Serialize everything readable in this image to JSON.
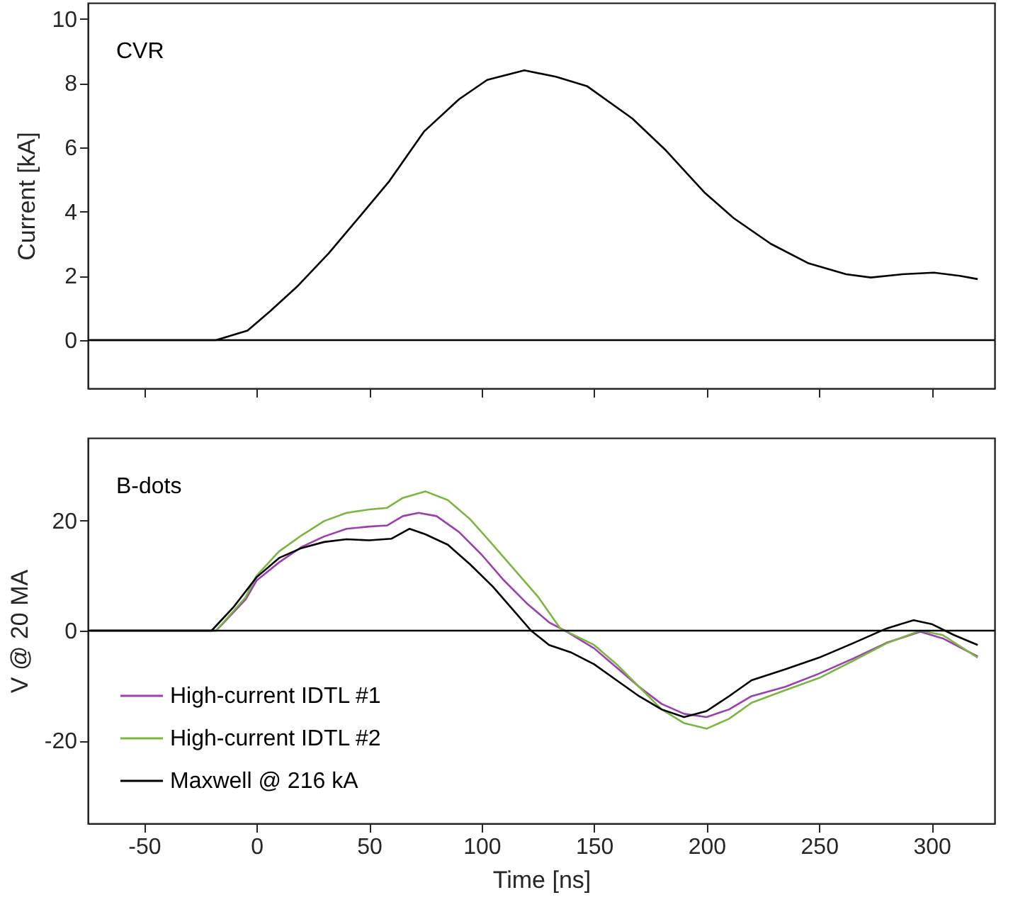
{
  "chart_data": [
    {
      "type": "line",
      "ylabel": "Current [kA]",
      "annotations": [
        "CVR"
      ],
      "xlim": [
        -75,
        328
      ],
      "xticks": [
        -50,
        0,
        50,
        100,
        150,
        200,
        250,
        300
      ],
      "ylim": [
        -1.5,
        10.5
      ],
      "yticks": [
        0,
        2,
        4,
        6,
        8,
        10
      ],
      "tick_labels": "y",
      "ref_lines": [
        {
          "axis": "y",
          "value": 0,
          "color": "#000000"
        }
      ],
      "series": [
        {
          "color": "#000000",
          "x": [
            -74,
            -18,
            -4,
            6,
            18.5,
            32,
            46.5,
            59,
            74.5,
            90,
            102.5,
            119,
            133,
            147,
            167,
            182,
            199,
            212,
            228.5,
            245,
            262,
            273,
            287,
            301,
            312.5,
            320.5
          ],
          "values": [
            0,
            0,
            0.3,
            0.9,
            1.7,
            2.7,
            3.9,
            4.95,
            6.5,
            7.5,
            8.1,
            8.4,
            8.2,
            7.9,
            6.9,
            5.9,
            4.6,
            3.8,
            3.0,
            2.4,
            2.05,
            1.95,
            2.05,
            2.1,
            2.0,
            1.9
          ]
        }
      ]
    },
    {
      "type": "line",
      "xlabel": "Time [ns]",
      "ylabel": "V @ 20 MA",
      "annotations": [
        "B-dots"
      ],
      "xlim": [
        -75,
        328
      ],
      "xticks": [
        -50,
        0,
        50,
        100,
        150,
        200,
        250,
        300
      ],
      "ylim": [
        -35,
        35
      ],
      "yticks": [
        -20,
        0,
        20
      ],
      "legend": "bottom left",
      "ref_lines": [
        {
          "axis": "y",
          "value": 0,
          "color": "#000000"
        }
      ],
      "series": [
        {
          "name": "High-current IDTL #1",
          "color": "#9b3fae",
          "x": [
            -74,
            -18,
            -5,
            0,
            10,
            20,
            30,
            40,
            50,
            58,
            65,
            72,
            80,
            90,
            100,
            110,
            120,
            130,
            137,
            150,
            160,
            170,
            180,
            190,
            200,
            210,
            220,
            235,
            250,
            265,
            280,
            295,
            305,
            320.5
          ],
          "values": [
            0,
            0,
            5.6,
            9.1,
            12.4,
            15.2,
            17.1,
            18.5,
            18.9,
            19.1,
            20.8,
            21.4,
            20.8,
            17.9,
            13.8,
            9.1,
            5,
            1.5,
            0,
            -3.2,
            -6.7,
            -10.2,
            -13.3,
            -15.1,
            -15.7,
            -14.3,
            -11.9,
            -10.2,
            -7.8,
            -5.1,
            -2.2,
            -0.2,
            -1.4,
            -4.7
          ]
        },
        {
          "name": "High-current IDTL #2",
          "color": "#7ab640",
          "x": [
            -74,
            -18,
            -5,
            0,
            10,
            20,
            30,
            40,
            50,
            58,
            65,
            75,
            85,
            95,
            105,
            115,
            125,
            135,
            150,
            160,
            170,
            180,
            190,
            200,
            210,
            220,
            235,
            250,
            265,
            280,
            295,
            305,
            320.5
          ],
          "values": [
            0,
            0,
            6,
            10,
            14.4,
            17.3,
            19.9,
            21.4,
            22,
            22.3,
            24.1,
            25.3,
            23.7,
            20.2,
            15.6,
            10.9,
            6.2,
            0.4,
            -2.6,
            -6.1,
            -10.2,
            -14.3,
            -16.8,
            -17.8,
            -16,
            -13.1,
            -10.8,
            -8.6,
            -5.5,
            -2.3,
            0,
            -0.8,
            -4.9
          ]
        },
        {
          "name": "Maxwell @ 216 kA",
          "color": "#000000",
          "x": [
            -74,
            -20,
            -10,
            0,
            10,
            20,
            30,
            40,
            50,
            60,
            68,
            75,
            85,
            95,
            105,
            115,
            122,
            130,
            140,
            150,
            160,
            170,
            180,
            190,
            200,
            210,
            220,
            235,
            250,
            265,
            280,
            292,
            300,
            310,
            320.5
          ],
          "values": [
            0,
            0,
            4.4,
            9.7,
            13.2,
            15,
            16.1,
            16.6,
            16.4,
            16.7,
            18.5,
            17.5,
            15.6,
            12,
            8,
            3.3,
            0,
            -2.6,
            -4,
            -6.1,
            -9,
            -11.9,
            -14.3,
            -15.7,
            -14.6,
            -11.9,
            -9,
            -7,
            -4.9,
            -2.3,
            0.4,
            1.9,
            1.2,
            -0.8,
            -2.6
          ]
        }
      ]
    }
  ]
}
